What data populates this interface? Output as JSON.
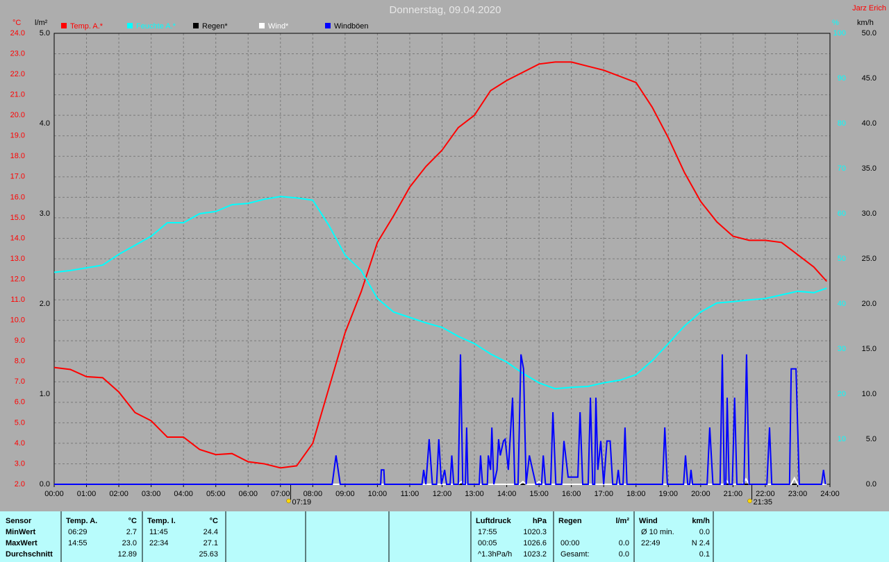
{
  "chart_data": {
    "type": "line",
    "title": "Donnerstag, 09.04.2020",
    "author": "Jarz Erich",
    "ylabel": "°C",
    "y4label": "l/m²",
    "y2label": "%",
    "y3label": "km/h",
    "xlim": [
      0,
      24
    ],
    "xticks": [
      {
        "value": 0,
        "label": "00:00"
      },
      {
        "value": 1,
        "label": "01:00"
      },
      {
        "value": 2,
        "label": "02:00"
      },
      {
        "value": 3,
        "label": "03:00"
      },
      {
        "value": 4,
        "label": "04:00"
      },
      {
        "value": 5,
        "label": "05:00"
      },
      {
        "value": 6,
        "label": "06:00"
      },
      {
        "value": 7,
        "label": "07:00"
      },
      {
        "value": 8,
        "label": "08:00"
      },
      {
        "value": 9,
        "label": "09:00"
      },
      {
        "value": 10,
        "label": "10:00"
      },
      {
        "value": 11,
        "label": "11:00"
      },
      {
        "value": 12,
        "label": "12:00"
      },
      {
        "value": 13,
        "label": "13:00"
      },
      {
        "value": 14,
        "label": "14:00"
      },
      {
        "value": 15,
        "label": "15:00"
      },
      {
        "value": 16,
        "label": "16:00"
      },
      {
        "value": 17,
        "label": "17:00"
      },
      {
        "value": 18,
        "label": "18:00"
      },
      {
        "value": 19,
        "label": "19:00"
      },
      {
        "value": 20,
        "label": "20:00"
      },
      {
        "value": 21,
        "label": "21:00"
      },
      {
        "value": 22,
        "label": "22:00"
      },
      {
        "value": 23,
        "label": "23:00"
      },
      {
        "value": 24,
        "label": "24:00"
      }
    ],
    "ylim": [
      2,
      24
    ],
    "yticks": [
      {
        "value": 2,
        "label": "2.0"
      },
      {
        "value": 3,
        "label": "3.0"
      },
      {
        "value": 4,
        "label": "4.0"
      },
      {
        "value": 5,
        "label": "5.0"
      },
      {
        "value": 6,
        "label": "6.0"
      },
      {
        "value": 7,
        "label": "7.0"
      },
      {
        "value": 8,
        "label": "8.0"
      },
      {
        "value": 9,
        "label": "9.0"
      },
      {
        "value": 10,
        "label": "10.0"
      },
      {
        "value": 11,
        "label": "11.0"
      },
      {
        "value": 12,
        "label": "12.0"
      },
      {
        "value": 13,
        "label": "13.0"
      },
      {
        "value": 14,
        "label": "14.0"
      },
      {
        "value": 15,
        "label": "15.0"
      },
      {
        "value": 16,
        "label": "16.0"
      },
      {
        "value": 17,
        "label": "17.0"
      },
      {
        "value": 18,
        "label": "18.0"
      },
      {
        "value": 19,
        "label": "19.0"
      },
      {
        "value": 20,
        "label": "20.0"
      },
      {
        "value": 21,
        "label": "21.0"
      },
      {
        "value": 22,
        "label": "22.0"
      },
      {
        "value": 23,
        "label": "23.0"
      },
      {
        "value": 24,
        "label": "24.0"
      }
    ],
    "y4lim": [
      0,
      5
    ],
    "y4ticks": [
      {
        "value": 0,
        "label": "0.0"
      },
      {
        "value": 1,
        "label": "1.0"
      },
      {
        "value": 2,
        "label": "2.0"
      },
      {
        "value": 3,
        "label": "3.0"
      },
      {
        "value": 4,
        "label": "4.0"
      },
      {
        "value": 5,
        "label": "5.0"
      }
    ],
    "y2lim": [
      0,
      100
    ],
    "y2ticks": [
      10,
      20,
      30,
      40,
      50,
      60,
      70,
      80,
      90,
      100
    ],
    "y3lim": [
      0,
      50
    ],
    "y3ticks": [
      {
        "value": 0,
        "label": "0.0"
      },
      {
        "value": 5,
        "label": "5.0"
      },
      {
        "value": 10,
        "label": "10.0"
      },
      {
        "value": 15,
        "label": "15.0"
      },
      {
        "value": 20,
        "label": "20.0"
      },
      {
        "value": 25,
        "label": "25.0"
      },
      {
        "value": 30,
        "label": "30.0"
      },
      {
        "value": 35,
        "label": "35.0"
      },
      {
        "value": 40,
        "label": "40.0"
      },
      {
        "value": 45,
        "label": "45.0"
      },
      {
        "value": 50,
        "label": "50.0"
      }
    ],
    "grid": true,
    "sun_events": [
      {
        "value": 7.3167,
        "label": "07:19"
      },
      {
        "value": 21.5833,
        "label": "21:35"
      }
    ],
    "series": [
      {
        "name": "Temp. A.*",
        "color": "#ff0000",
        "axis": "y",
        "x": [
          0,
          0.5,
          1,
          1.5,
          2,
          2.5,
          3,
          3.5,
          4,
          4.5,
          5,
          5.5,
          6,
          6.5,
          7,
          7.5,
          8,
          8.5,
          9,
          9.5,
          10,
          10.5,
          11,
          11.5,
          12,
          12.5,
          13,
          13.5,
          14,
          14.5,
          15,
          15.5,
          16,
          16.5,
          17,
          17.5,
          18,
          18.5,
          19,
          19.5,
          20,
          20.5,
          21,
          21.5,
          22,
          22.5,
          23,
          23.5,
          23.9
        ],
        "values": [
          7.7,
          7.6,
          7.25,
          7.2,
          6.5,
          5.5,
          5.1,
          4.3,
          4.3,
          3.7,
          3.45,
          3.5,
          3.1,
          3.0,
          2.8,
          2.9,
          4.0,
          6.7,
          9.4,
          11.4,
          13.8,
          15.1,
          16.5,
          17.5,
          18.3,
          19.4,
          20.0,
          21.2,
          21.7,
          22.1,
          22.5,
          22.6,
          22.6,
          22.4,
          22.2,
          21.9,
          21.6,
          20.4,
          18.9,
          17.2,
          15.8,
          14.8,
          14.1,
          13.9,
          13.9,
          13.8,
          13.2,
          12.6,
          11.9
        ]
      },
      {
        "name": "Feuchte A.*",
        "color": "#00ffff",
        "axis": "y2",
        "x": [
          0,
          0.5,
          1,
          1.5,
          2,
          2.5,
          3,
          3.5,
          4,
          4.5,
          5,
          5.5,
          6,
          6.5,
          7,
          7.5,
          8,
          8.5,
          9,
          9.5,
          10,
          10.5,
          11,
          11.5,
          12,
          12.5,
          13,
          13.5,
          14,
          14.5,
          15,
          15.5,
          16,
          16.5,
          17,
          17.5,
          18,
          18.5,
          19,
          19.5,
          20,
          20.5,
          21,
          21.5,
          22,
          22.5,
          23,
          23.5,
          23.9
        ],
        "values": [
          47,
          47.4,
          48,
          48.6,
          51,
          53,
          55,
          58,
          58,
          60,
          60.5,
          62,
          62.3,
          63.2,
          63.8,
          63.5,
          63,
          57.4,
          50.8,
          47.4,
          41.2,
          38.2,
          37,
          35.8,
          34.8,
          32.8,
          31.2,
          28.9,
          27.1,
          24.6,
          22.5,
          21.2,
          21.5,
          21.7,
          22.5,
          23.1,
          24.3,
          27.4,
          31.2,
          35.1,
          38.2,
          40.2,
          40.5,
          40.9,
          41.2,
          42,
          42.8,
          42.5,
          43.5
        ]
      },
      {
        "name": "Regen*",
        "color": "#000000",
        "axis": "y4",
        "x": [
          0,
          23.9
        ],
        "values": [
          0,
          0
        ]
      },
      {
        "name": "Wind*",
        "color": "#ffffff",
        "axis": "y3",
        "x": [
          0,
          12.5,
          12.6,
          12.7,
          14.4,
          14.5,
          14.6,
          14.9,
          15.0,
          15.1,
          20.7,
          20.8,
          20.9,
          21.3,
          21.4,
          21.5,
          22.8,
          22.9,
          23.0,
          23.9
        ],
        "values": [
          0,
          0,
          0.3,
          0,
          0,
          0.3,
          0,
          0,
          0.3,
          0,
          0,
          0.4,
          0,
          0,
          0.6,
          0,
          0,
          0.7,
          0,
          0
        ]
      },
      {
        "name": "Windböen",
        "color": "#0000ff",
        "axis": "y3",
        "x": [
          0,
          8.6,
          8.72,
          8.85,
          10.1,
          10.12,
          10.2,
          10.22,
          11.38,
          11.43,
          11.5,
          11.6,
          11.7,
          11.83,
          11.9,
          11.98,
          12.08,
          12.14,
          12.25,
          12.3,
          12.36,
          12.5,
          12.57,
          12.64,
          12.72,
          12.76,
          12.8,
          13.15,
          13.19,
          13.25,
          13.4,
          13.43,
          13.5,
          13.54,
          13.6,
          13.7,
          13.75,
          13.8,
          13.9,
          13.95,
          14.05,
          14.18,
          14.25,
          14.35,
          14.44,
          14.52,
          14.6,
          14.7,
          14.8,
          14.9,
          15.08,
          15.13,
          15.2,
          15.36,
          15.43,
          15.52,
          15.7,
          15.77,
          15.9,
          16.2,
          16.27,
          16.35,
          16.52,
          16.59,
          16.66,
          16.72,
          16.76,
          16.82,
          16.91,
          17.0,
          17.1,
          17.2,
          17.28,
          17.4,
          17.45,
          17.5,
          17.6,
          17.66,
          17.72,
          18.82,
          18.89,
          18.97,
          19.47,
          19.53,
          19.6,
          19.66,
          19.7,
          19.75,
          20.2,
          20.28,
          20.38,
          20.6,
          20.67,
          20.73,
          20.78,
          20.82,
          20.88,
          20.98,
          21.05,
          21.12,
          21.34,
          21.42,
          21.5,
          22.05,
          22.13,
          22.2,
          22.75,
          22.8,
          22.95,
          23.05,
          23.74,
          23.8,
          23.86
        ],
        "values": [
          0,
          0,
          3.2,
          0,
          0,
          1.6,
          1.6,
          0,
          0,
          1.6,
          0,
          5.0,
          0,
          0,
          5.0,
          0,
          1.6,
          0,
          0,
          3.2,
          0,
          0,
          14.4,
          0,
          0,
          6.3,
          0,
          0,
          3.2,
          0,
          0,
          3.2,
          1.6,
          6.3,
          0,
          1.6,
          5.0,
          3.2,
          4.8,
          5.0,
          1.6,
          9.6,
          0,
          0,
          14.4,
          12.8,
          0,
          3.2,
          1.6,
          0,
          0,
          3.2,
          0,
          0,
          8.0,
          0,
          0,
          4.8,
          0.8,
          0.8,
          8.0,
          0,
          0,
          9.6,
          0,
          0,
          9.6,
          1.6,
          4.8,
          0,
          4.8,
          4.8,
          0,
          0,
          1.6,
          0,
          0,
          6.3,
          0,
          0,
          6.3,
          0,
          0,
          3.2,
          0,
          0,
          1.6,
          0,
          0,
          6.3,
          0,
          0,
          14.4,
          0,
          0,
          9.6,
          0,
          0,
          9.6,
          0,
          0,
          14.4,
          0,
          0,
          6.3,
          0,
          0,
          12.8,
          12.8,
          0,
          0,
          1.6,
          0
        ]
      }
    ]
  },
  "table": {
    "corner": "Sensor",
    "row_labels": [
      "MinWert",
      "MaxWert",
      "Durchschnitt"
    ],
    "groups": [
      {
        "name": "Temp. A.",
        "unit": "°C",
        "rows": [
          [
            "06:29",
            "2.7"
          ],
          [
            "14:55",
            "23.0"
          ],
          [
            null,
            "12.89"
          ]
        ]
      },
      {
        "name": "Temp. I.",
        "unit": "°C",
        "rows": [
          [
            "11:45",
            "24.4"
          ],
          [
            "22:34",
            "27.1"
          ],
          [
            null,
            "25.63"
          ]
        ]
      },
      {
        "name": "Luftdruck",
        "unit": "hPa",
        "rows": [
          [
            "17:55",
            "1020.3"
          ],
          [
            "00:05",
            "1026.6"
          ],
          [
            "^1.3hPa/h",
            "1023.2"
          ]
        ]
      },
      {
        "name": "Regen",
        "unit": "l/m²",
        "rows": [
          [
            null,
            null
          ],
          [
            "00:00",
            "0.0"
          ],
          [
            "Gesamt:",
            "0.0"
          ]
        ]
      },
      {
        "name": "Wind",
        "unit": "km/h",
        "rows": [
          [
            "Ø 10 min.",
            "0.0"
          ],
          [
            "22:49",
            "N 2.4"
          ],
          [
            null,
            "0.1"
          ]
        ]
      }
    ]
  }
}
